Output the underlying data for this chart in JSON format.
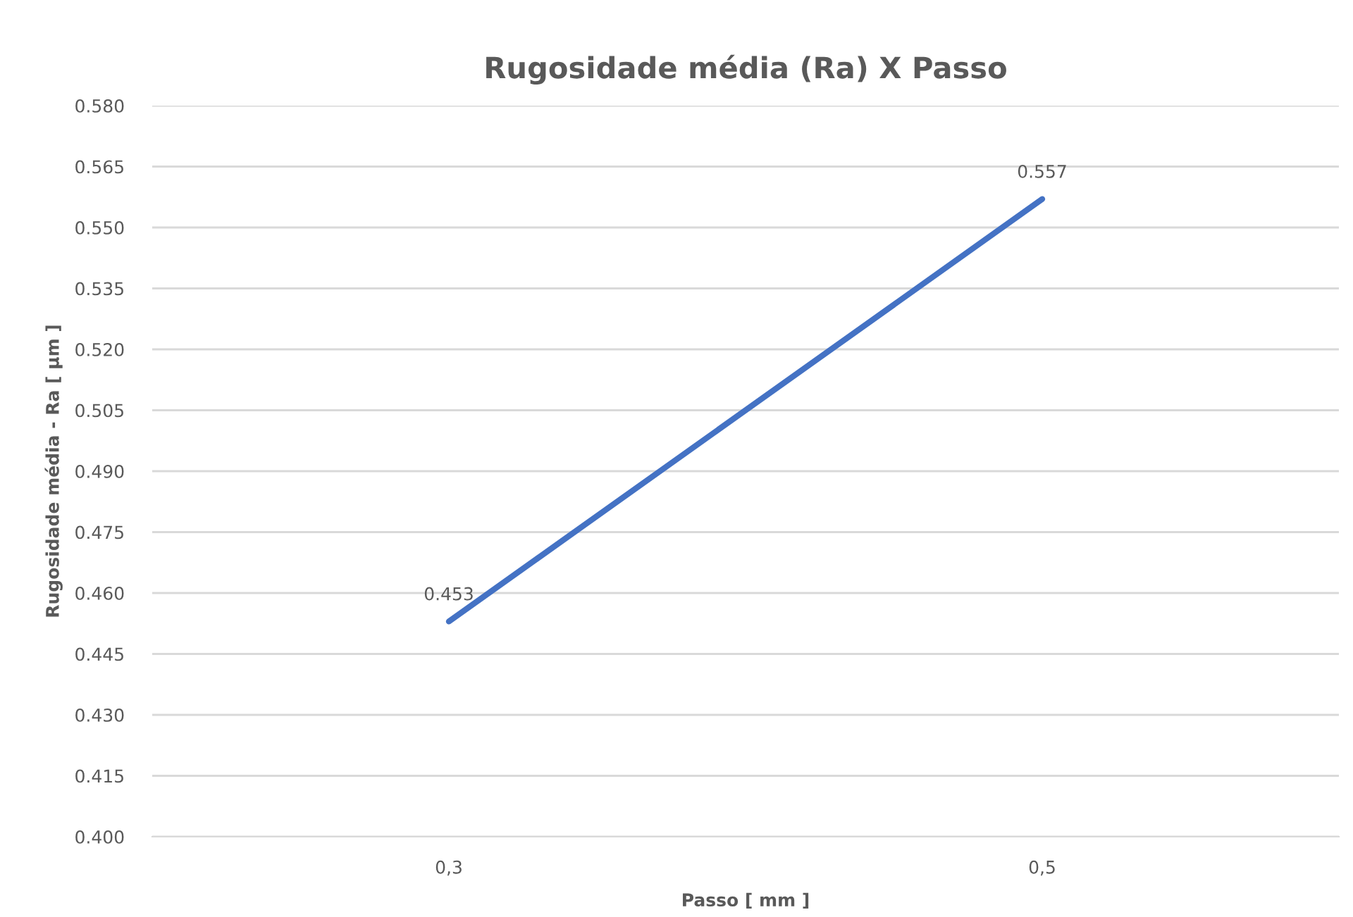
{
  "chart_data": {
    "type": "line",
    "title": "Rugosidade média (Ra) X Passo",
    "xlabel": "Passo [ mm ]",
    "ylabel": "Rugosidade média - Ra [ µm ]",
    "categories": [
      "0,3",
      "0,5"
    ],
    "series": [
      {
        "color": "#4472c4",
        "values": [
          0.453,
          0.557
        ]
      }
    ],
    "ylim": [
      0.4,
      0.58
    ],
    "yticks": [
      {
        "value": 0.4,
        "label": "0.400"
      },
      {
        "value": 0.415,
        "label": "0.415"
      },
      {
        "value": 0.43,
        "label": "0.430"
      },
      {
        "value": 0.445,
        "label": "0.445"
      },
      {
        "value": 0.46,
        "label": "0.460"
      },
      {
        "value": 0.475,
        "label": "0.475"
      },
      {
        "value": 0.49,
        "label": "0.490"
      },
      {
        "value": 0.505,
        "label": "0.505"
      },
      {
        "value": 0.52,
        "label": "0.520"
      },
      {
        "value": 0.535,
        "label": "0.535"
      },
      {
        "value": 0.55,
        "label": "0.550"
      },
      {
        "value": 0.565,
        "label": "0.565"
      },
      {
        "value": 0.58,
        "label": "0.580"
      }
    ],
    "grid": "y",
    "data_labels": true,
    "marker": "none",
    "line_style": "solid",
    "legend": false
  }
}
